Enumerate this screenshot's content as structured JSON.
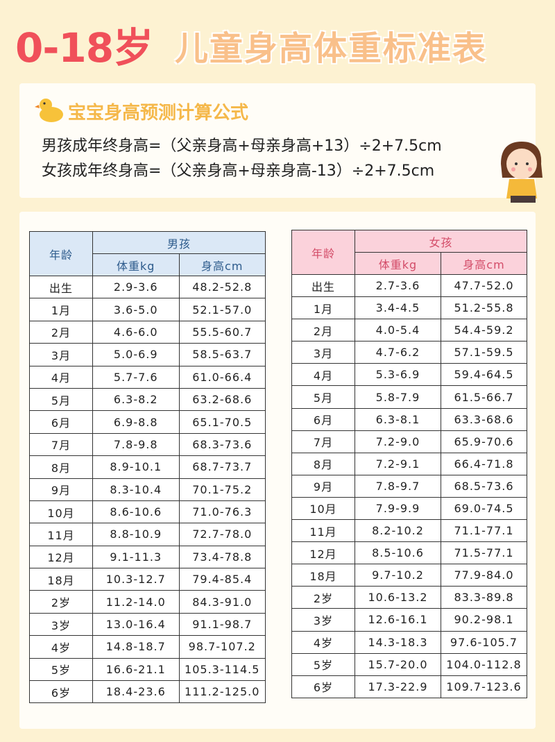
{
  "title": {
    "part1": "0-18岁",
    "part2": "儿童身高体重标准表"
  },
  "formula": {
    "heading": "宝宝身高预测计算公式",
    "lines": [
      "男孩成年终身高=（父亲身高+母亲身高+13）÷2+7.5cm",
      "女孩成年终身高=（父亲身高+母亲身高-13）÷2+7.5cm"
    ]
  },
  "tables": [
    {
      "age_header": "年龄",
      "group": "男孩",
      "weight_header": "体重kg",
      "height_header": "身高cm",
      "rows": [
        [
          "出生",
          "2.9-3.6",
          "48.2-52.8"
        ],
        [
          "1月",
          "3.6-5.0",
          "52.1-57.0"
        ],
        [
          "2月",
          "4.6-6.0",
          "55.5-60.7"
        ],
        [
          "3月",
          "5.0-6.9",
          "58.5-63.7"
        ],
        [
          "4月",
          "5.7-7.6",
          "61.0-66.4"
        ],
        [
          "5月",
          "6.3-8.2",
          "63.2-68.6"
        ],
        [
          "6月",
          "6.9-8.8",
          "65.1-70.5"
        ],
        [
          "7月",
          "7.8-9.8",
          "68.3-73.6"
        ],
        [
          "8月",
          "8.9-10.1",
          "68.7-73.7"
        ],
        [
          "9月",
          "8.3-10.4",
          "70.1-75.2"
        ],
        [
          "10月",
          "8.6-10.6",
          "71.0-76.3"
        ],
        [
          "11月",
          "8.8-10.9",
          "72.7-78.0"
        ],
        [
          "12月",
          "9.1-11.3",
          "73.4-78.8"
        ],
        [
          "18月",
          "10.3-12.7",
          "79.4-85.4"
        ],
        [
          "2岁",
          "11.2-14.0",
          "84.3-91.0"
        ],
        [
          "3岁",
          "13.0-16.4",
          "91.1-98.7"
        ],
        [
          "4岁",
          "14.8-18.7",
          "98.7-107.2"
        ],
        [
          "5岁",
          "16.6-21.1",
          "105.3-114.5"
        ],
        [
          "6岁",
          "18.4-23.6",
          "111.2-125.0"
        ]
      ]
    },
    {
      "age_header": "年龄",
      "group": "女孩",
      "weight_header": "体重kg",
      "height_header": "身高cm",
      "rows": [
        [
          "出生",
          "2.7-3.6",
          "47.7-52.0"
        ],
        [
          "1月",
          "3.4-4.5",
          "51.2-55.8"
        ],
        [
          "2月",
          "4.0-5.4",
          "54.4-59.2"
        ],
        [
          "3月",
          "4.7-6.2",
          "57.1-59.5"
        ],
        [
          "4月",
          "5.3-6.9",
          "59.4-64.5"
        ],
        [
          "5月",
          "5.8-7.9",
          "61.5-66.7"
        ],
        [
          "6月",
          "6.3-8.1",
          "63.3-68.6"
        ],
        [
          "7月",
          "7.2-9.0",
          "65.9-70.6"
        ],
        [
          "8月",
          "7.2-9.1",
          "66.4-71.8"
        ],
        [
          "9月",
          "7.8-9.7",
          "68.5-73.6"
        ],
        [
          "10月",
          "7.9-9.9",
          "69.0-74.5"
        ],
        [
          "11月",
          "8.2-10.2",
          "71.1-77.1"
        ],
        [
          "12月",
          "8.5-10.6",
          "71.5-77.1"
        ],
        [
          "18月",
          "9.7-10.2",
          "77.9-84.0"
        ],
        [
          "2岁",
          "10.6-13.2",
          "83.3-89.8"
        ],
        [
          "3岁",
          "12.6-16.1",
          "90.2-98.1"
        ],
        [
          "4岁",
          "14.3-18.3",
          "97.6-105.7"
        ],
        [
          "5岁",
          "15.7-20.0",
          "104.0-112.8"
        ],
        [
          "6岁",
          "17.3-22.9",
          "109.7-123.6"
        ]
      ]
    }
  ]
}
